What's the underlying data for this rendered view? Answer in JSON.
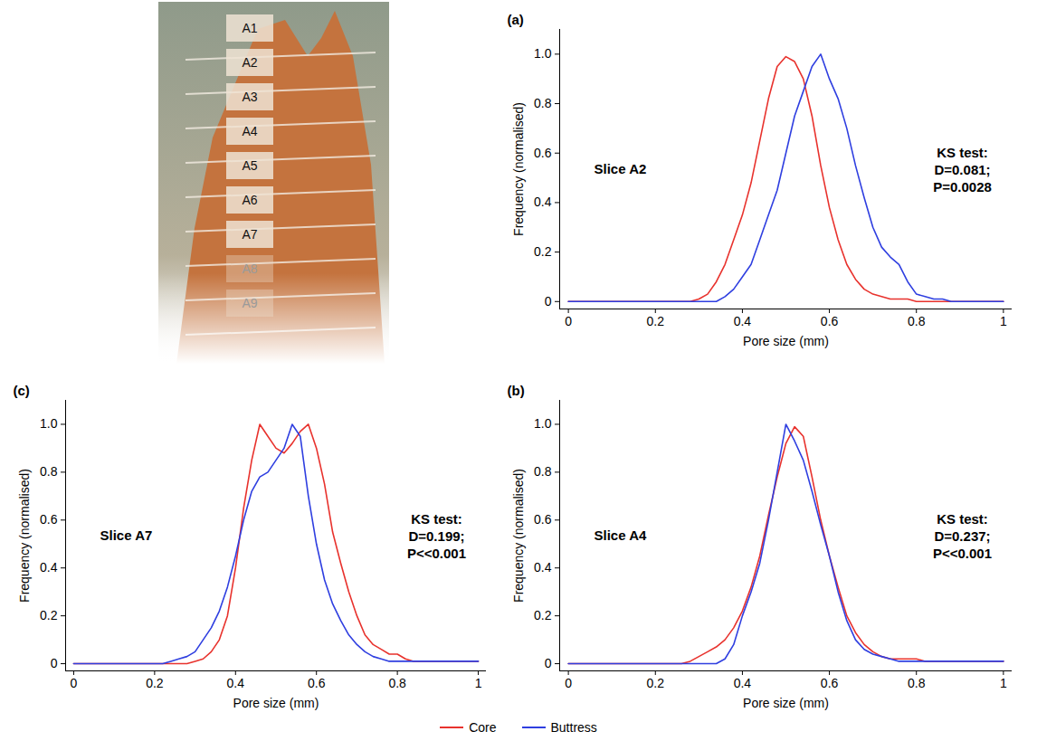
{
  "image": {
    "labels": [
      "A1",
      "A2",
      "A3",
      "A4",
      "A5",
      "A6",
      "A7",
      "A8",
      "A9"
    ]
  },
  "chart_data": [
    {
      "type": "line",
      "panel_label": "(a)",
      "title": "Slice A2",
      "annotations": [
        "KS test:",
        "D=0.081;",
        "P=0.0028"
      ],
      "x_label": "Pore size (mm)",
      "y_label": "Frequency (normalised)",
      "xlim": [
        -0.02,
        1.02
      ],
      "xticks": [
        0,
        0.2,
        0.4,
        0.6,
        0.8,
        1
      ],
      "ylim": [
        -0.03,
        1.1
      ],
      "yticks": [
        0,
        0.2,
        0.4,
        0.6,
        0.8,
        {
          "value": 1,
          "label": "1.0"
        }
      ],
      "legend": "bottom",
      "x": [
        0,
        0.02,
        0.04,
        0.06,
        0.08,
        0.1,
        0.12,
        0.14,
        0.16,
        0.18,
        0.2,
        0.22,
        0.24,
        0.26,
        0.28,
        0.3,
        0.32,
        0.34,
        0.36,
        0.38,
        0.4,
        0.42,
        0.44,
        0.46,
        0.48,
        0.5,
        0.52,
        0.54,
        0.56,
        0.58,
        0.6,
        0.62,
        0.64,
        0.66,
        0.68,
        0.7,
        0.72,
        0.74,
        0.76,
        0.78,
        0.8,
        0.82,
        0.84,
        0.86,
        0.88,
        0.9,
        0.92,
        0.94,
        0.96,
        0.98,
        1
      ],
      "series": [
        {
          "name": "Core",
          "color": "#e8322d",
          "values": [
            0,
            0,
            0,
            0,
            0,
            0,
            0,
            0,
            0,
            0,
            0,
            0,
            0,
            0,
            0,
            0.01,
            0.03,
            0.08,
            0.15,
            0.25,
            0.35,
            0.48,
            0.65,
            0.82,
            0.95,
            0.99,
            0.97,
            0.9,
            0.75,
            0.55,
            0.38,
            0.25,
            0.15,
            0.09,
            0.05,
            0.03,
            0.02,
            0.01,
            0.01,
            0.01,
            0,
            0,
            0,
            0,
            0,
            0,
            0,
            0,
            0,
            0,
            0
          ]
        },
        {
          "name": "Buttress",
          "color": "#2f3fe0",
          "values": [
            0,
            0,
            0,
            0,
            0,
            0,
            0,
            0,
            0,
            0,
            0,
            0,
            0,
            0,
            0,
            0,
            0,
            0,
            0.02,
            0.05,
            0.1,
            0.15,
            0.25,
            0.35,
            0.45,
            0.6,
            0.75,
            0.85,
            0.95,
            1.0,
            0.9,
            0.82,
            0.7,
            0.55,
            0.42,
            0.3,
            0.22,
            0.18,
            0.15,
            0.08,
            0.03,
            0.02,
            0.01,
            0.01,
            0,
            0,
            0,
            0,
            0,
            0,
            0
          ]
        }
      ]
    },
    {
      "type": "line",
      "panel_label": "(b)",
      "title": "Slice A4",
      "annotations": [
        "KS test:",
        "D=0.237;",
        "P<<0.001"
      ],
      "x_label": "Pore size (mm)",
      "y_label": "Frequency (normalised)",
      "xlim": [
        -0.02,
        1.02
      ],
      "xticks": [
        0,
        0.2,
        0.4,
        0.6,
        0.8,
        1
      ],
      "ylim": [
        -0.03,
        1.1
      ],
      "yticks": [
        0,
        0.2,
        0.4,
        0.6,
        0.8,
        {
          "value": 1,
          "label": "1.0"
        }
      ],
      "legend": "bottom",
      "x": [
        0,
        0.02,
        0.04,
        0.06,
        0.08,
        0.1,
        0.12,
        0.14,
        0.16,
        0.18,
        0.2,
        0.22,
        0.24,
        0.26,
        0.28,
        0.3,
        0.32,
        0.34,
        0.36,
        0.38,
        0.4,
        0.42,
        0.44,
        0.46,
        0.48,
        0.5,
        0.52,
        0.54,
        0.56,
        0.58,
        0.6,
        0.62,
        0.64,
        0.66,
        0.68,
        0.7,
        0.72,
        0.74,
        0.76,
        0.78,
        0.8,
        0.82,
        0.84,
        0.86,
        0.88,
        0.9,
        0.92,
        0.94,
        0.96,
        0.98,
        1
      ],
      "series": [
        {
          "name": "Core",
          "color": "#e8322d",
          "values": [
            0,
            0,
            0,
            0,
            0,
            0,
            0,
            0,
            0,
            0,
            0,
            0,
            0,
            0,
            0.01,
            0.03,
            0.05,
            0.07,
            0.1,
            0.15,
            0.22,
            0.32,
            0.45,
            0.62,
            0.78,
            0.92,
            0.99,
            0.95,
            0.78,
            0.6,
            0.45,
            0.32,
            0.2,
            0.13,
            0.08,
            0.05,
            0.03,
            0.02,
            0.02,
            0.02,
            0.02,
            0.01,
            0.01,
            0.01,
            0.01,
            0.01,
            0.01,
            0.01,
            0.01,
            0.01,
            0.01
          ]
        },
        {
          "name": "Buttress",
          "color": "#2f3fe0",
          "values": [
            0,
            0,
            0,
            0,
            0,
            0,
            0,
            0,
            0,
            0,
            0,
            0,
            0,
            0,
            0,
            0,
            0,
            0,
            0.02,
            0.08,
            0.2,
            0.3,
            0.42,
            0.6,
            0.8,
            1.0,
            0.93,
            0.85,
            0.72,
            0.58,
            0.45,
            0.3,
            0.18,
            0.1,
            0.06,
            0.04,
            0.03,
            0.02,
            0.01,
            0.01,
            0.01,
            0.01,
            0.01,
            0.01,
            0.01,
            0.01,
            0.01,
            0.01,
            0.01,
            0.01,
            0.01
          ]
        }
      ]
    },
    {
      "type": "line",
      "panel_label": "(c)",
      "title": "Slice A7",
      "annotations": [
        "KS test:",
        "D=0.199;",
        "P<<0.001"
      ],
      "x_label": "Pore size (mm)",
      "y_label": "Frequency (normalised)",
      "xlim": [
        -0.02,
        1.02
      ],
      "xticks": [
        0,
        0.2,
        0.4,
        0.6,
        0.8,
        1
      ],
      "ylim": [
        -0.03,
        1.1
      ],
      "yticks": [
        0,
        0.2,
        0.4,
        0.6,
        0.8,
        {
          "value": 1,
          "label": "1.0"
        }
      ],
      "legend": "bottom",
      "x": [
        0,
        0.02,
        0.04,
        0.06,
        0.08,
        0.1,
        0.12,
        0.14,
        0.16,
        0.18,
        0.2,
        0.22,
        0.24,
        0.26,
        0.28,
        0.3,
        0.32,
        0.34,
        0.36,
        0.38,
        0.4,
        0.42,
        0.44,
        0.46,
        0.48,
        0.5,
        0.52,
        0.54,
        0.56,
        0.58,
        0.6,
        0.62,
        0.64,
        0.66,
        0.68,
        0.7,
        0.72,
        0.74,
        0.76,
        0.78,
        0.8,
        0.82,
        0.84,
        0.86,
        0.88,
        0.9,
        0.92,
        0.94,
        0.96,
        0.98,
        1
      ],
      "series": [
        {
          "name": "Core",
          "color": "#e8322d",
          "values": [
            0,
            0,
            0,
            0,
            0,
            0,
            0,
            0,
            0,
            0,
            0,
            0,
            0,
            0,
            0,
            0.01,
            0.02,
            0.05,
            0.1,
            0.2,
            0.4,
            0.65,
            0.85,
            1.0,
            0.95,
            0.9,
            0.88,
            0.92,
            0.97,
            1.0,
            0.9,
            0.75,
            0.55,
            0.42,
            0.3,
            0.2,
            0.12,
            0.08,
            0.06,
            0.04,
            0.04,
            0.02,
            0.01,
            0.01,
            0.01,
            0.01,
            0.01,
            0.01,
            0.01,
            0.01,
            0.01
          ]
        },
        {
          "name": "Buttress",
          "color": "#2f3fe0",
          "values": [
            0,
            0,
            0,
            0,
            0,
            0,
            0,
            0,
            0,
            0,
            0,
            0,
            0.01,
            0.02,
            0.03,
            0.05,
            0.1,
            0.15,
            0.22,
            0.32,
            0.45,
            0.6,
            0.72,
            0.78,
            0.8,
            0.85,
            0.9,
            1.0,
            0.95,
            0.7,
            0.5,
            0.35,
            0.25,
            0.18,
            0.12,
            0.08,
            0.05,
            0.03,
            0.02,
            0.01,
            0.01,
            0.01,
            0.01,
            0.01,
            0.01,
            0.01,
            0.01,
            0.01,
            0.01,
            0.01,
            0.01
          ]
        }
      ]
    }
  ]
}
